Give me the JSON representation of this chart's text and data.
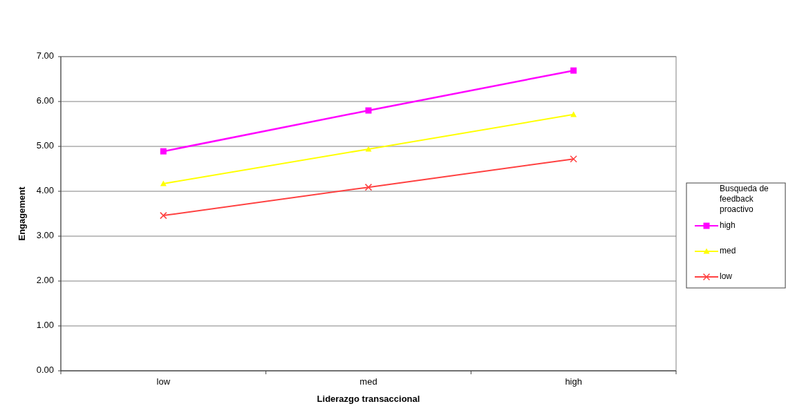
{
  "chart_data": {
    "type": "line",
    "xlabel": "Liderazgo transaccional",
    "ylabel": "Engagement",
    "legend_title": "Busqueda de feedback proactivo",
    "categories": [
      "low",
      "med",
      "high"
    ],
    "series": [
      {
        "name": "high",
        "color": "#ff00ff",
        "marker": "square",
        "values": [
          4.89,
          5.8,
          6.69
        ]
      },
      {
        "name": "med",
        "color": "#ffff00",
        "marker": "triangle",
        "values": [
          4.17,
          4.94,
          5.71
        ]
      },
      {
        "name": "low",
        "color": "#ff4040",
        "marker": "cross",
        "values": [
          3.46,
          4.09,
          4.72
        ]
      }
    ],
    "ylim": [
      0,
      7
    ],
    "yticks": [
      {
        "value": 0,
        "label": "0.00"
      },
      {
        "value": 1,
        "label": "1.00"
      },
      {
        "value": 2,
        "label": "2.00"
      },
      {
        "value": 3,
        "label": "3.00"
      },
      {
        "value": 4,
        "label": "4.00"
      },
      {
        "value": 5,
        "label": "5.00"
      },
      {
        "value": 6,
        "label": "6.00"
      },
      {
        "value": 7,
        "label": "7.00"
      }
    ],
    "grid": "y",
    "legend": "right"
  }
}
